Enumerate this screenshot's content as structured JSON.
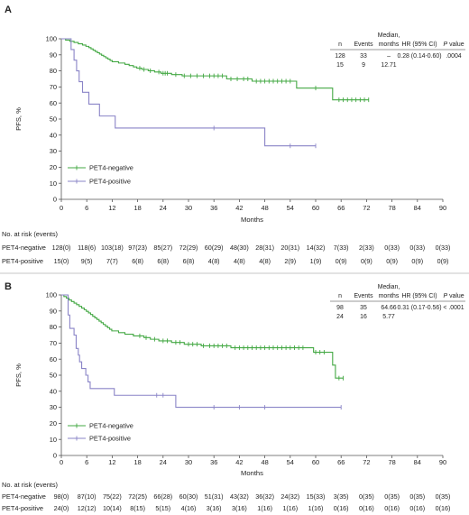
{
  "chart_data": [
    {
      "panel": "A",
      "type": "line",
      "xlabel": "Months",
      "ylabel": "PFS, %",
      "xlim": [
        0,
        90
      ],
      "ylim": [
        0,
        100
      ],
      "xticks": [
        "0",
        "6",
        "12",
        "18",
        "24",
        "30",
        "36",
        "42",
        "48",
        "54",
        "60",
        "66",
        "72",
        "78",
        "84",
        "90"
      ],
      "yticks": [
        "0",
        "10",
        "20",
        "30",
        "40",
        "50",
        "60",
        "70",
        "80",
        "90",
        "100"
      ],
      "grid": false,
      "legend_position": "lower-left",
      "series": [
        {
          "name": "PET4-negative",
          "color": "#43a843",
          "x": [
            0,
            1.0,
            2.0,
            3.0,
            4.0,
            5.0,
            5.8,
            6.5,
            7.0,
            7.5,
            8.0,
            8.5,
            9.0,
            9.5,
            10.0,
            10.5,
            11.0,
            11.5,
            12.0,
            13.5,
            15.0,
            16.0,
            17.0,
            17.8,
            19.0,
            20.5,
            22.0,
            23.5,
            26.0,
            28.5,
            39.0,
            45.0,
            55.5,
            64.0
          ],
          "y": [
            100,
            99.2,
            98.4,
            97.7,
            96.9,
            96.1,
            95.3,
            94.5,
            93.7,
            92.9,
            92.1,
            91.3,
            90.5,
            89.7,
            88.9,
            88.1,
            87.3,
            86.5,
            85.7,
            84.9,
            84.1,
            83.3,
            82.5,
            81.7,
            80.9,
            80.1,
            79.3,
            78.5,
            77.7,
            76.9,
            75.0,
            73.6,
            69.3,
            62.0
          ],
          "end": 72.5,
          "censored": [
            18.5,
            19.5,
            21,
            23,
            24,
            24.5,
            25,
            27,
            29,
            30.5,
            32,
            33.5,
            35,
            36,
            37,
            38,
            40,
            41.5,
            43,
            44,
            46,
            47,
            48,
            49,
            50,
            51,
            52,
            53,
            54,
            60,
            65.5,
            66.5,
            67.5,
            68.5,
            69.5,
            70.5,
            71.5,
            72.5
          ]
        },
        {
          "name": "PET4-positive",
          "color": "#8a84c7",
          "x": [
            0,
            2.3,
            3.0,
            3.6,
            4.2,
            5.0,
            6.5,
            9.0,
            12.71,
            48.0
          ],
          "y": [
            100,
            93.3,
            86.7,
            80.0,
            73.3,
            66.7,
            59.3,
            51.9,
            44.4,
            33.3
          ],
          "end": 60,
          "censored": [
            36,
            54,
            60
          ]
        }
      ],
      "stats_table": {
        "headers": {
          "n": "n",
          "events": "Events",
          "median_line1": "Median,",
          "median_line2": "months",
          "hr": "HR (95% CI)",
          "p_italic": "P",
          "p_rest": "value"
        },
        "rows": [
          {
            "n": "128",
            "events": "33",
            "median": "–",
            "hr": "0.28 (0.14-0.60)",
            "p": ".0004"
          },
          {
            "n": "15",
            "events": "9",
            "median": "12.71"
          }
        ]
      },
      "risk_table": {
        "title": "No. at risk (events)",
        "rows": [
          {
            "label": "PET4-negative",
            "values": [
              "128(0)",
              "118(6)",
              "103(18)",
              "97(23)",
              "85(27)",
              "72(29)",
              "60(29)",
              "48(30)",
              "28(31)",
              "20(31)",
              "14(32)",
              "7(33)",
              "2(33)",
              "0(33)",
              "0(33)",
              "0(33)"
            ]
          },
          {
            "label": "PET4-positive",
            "values": [
              "15(0)",
              "9(5)",
              "7(7)",
              "6(8)",
              "6(8)",
              "6(8)",
              "4(8)",
              "4(8)",
              "4(8)",
              "2(9)",
              "1(9)",
              "0(9)",
              "0(9)",
              "0(9)",
              "0(9)",
              "0(9)"
            ]
          }
        ]
      }
    },
    {
      "panel": "B",
      "type": "line",
      "xlabel": "Months",
      "ylabel": "PFS, %",
      "xlim": [
        0,
        90
      ],
      "ylim": [
        0,
        100
      ],
      "xticks": [
        "0",
        "6",
        "12",
        "18",
        "24",
        "30",
        "36",
        "42",
        "48",
        "54",
        "60",
        "66",
        "72",
        "78",
        "84",
        "90"
      ],
      "yticks": [
        "0",
        "10",
        "20",
        "30",
        "40",
        "50",
        "60",
        "70",
        "80",
        "90",
        "100"
      ],
      "grid": false,
      "legend_position": "lower-left",
      "series": [
        {
          "name": "PET4-negative",
          "color": "#43a843",
          "x": [
            0,
            0.6,
            1.2,
            1.8,
            2.4,
            3.0,
            3.6,
            4.2,
            4.8,
            5.4,
            5.9,
            6.4,
            6.9,
            7.4,
            7.9,
            8.4,
            8.9,
            9.4,
            9.9,
            10.4,
            10.9,
            11.4,
            11.9,
            13.5,
            15.0,
            17.0,
            19.5,
            21.0,
            23.0,
            26.0,
            29.0,
            33.0,
            40.0,
            59.5,
            64.0,
            64.66
          ],
          "y": [
            100,
            99.0,
            98.0,
            96.9,
            95.9,
            94.9,
            93.9,
            92.9,
            91.8,
            90.8,
            89.8,
            88.8,
            87.8,
            86.7,
            85.7,
            84.7,
            83.7,
            82.7,
            81.6,
            80.6,
            79.6,
            78.6,
            77.6,
            76.5,
            75.5,
            74.5,
            73.4,
            72.4,
            71.4,
            70.4,
            69.3,
            68.3,
            67.1,
            64.3,
            56.3,
            48.2
          ],
          "end": 66.5,
          "censored": [
            18.5,
            20,
            22,
            24,
            25,
            27,
            28,
            30,
            31,
            32,
            33.5,
            35,
            36,
            37,
            38,
            39,
            41,
            42,
            43,
            44,
            45,
            46,
            47,
            48,
            49,
            50,
            51,
            52,
            53,
            54,
            55,
            56,
            57,
            60,
            61,
            62,
            65.5,
            66.5
          ]
        },
        {
          "name": "PET4-positive",
          "color": "#8a84c7",
          "x": [
            0,
            1.6,
            2.0,
            3.0,
            3.5,
            4.0,
            4.3,
            4.8,
            5.77,
            6.3,
            6.8,
            12.5,
            27.0
          ],
          "y": [
            100,
            87.5,
            79.2,
            75.0,
            66.7,
            62.5,
            58.3,
            54.2,
            50.0,
            45.8,
            41.7,
            37.5,
            30.0
          ],
          "end": 66,
          "censored": [
            22.5,
            24,
            36,
            42,
            48,
            66
          ]
        }
      ],
      "stats_table": {
        "headers": {
          "n": "n",
          "events": "Events",
          "median_line1": "Median,",
          "median_line2": "months",
          "hr": "HR (95% CI)",
          "p_italic": "P",
          "p_rest": "value"
        },
        "rows": [
          {
            "n": "98",
            "events": "35",
            "median": "64.66",
            "hr": "0.31 (0.17-0.56)",
            "p": "< .0001"
          },
          {
            "n": "24",
            "events": "16",
            "median": "5.77"
          }
        ]
      },
      "risk_table": {
        "title": "No. at risk (events)",
        "rows": [
          {
            "label": "PET4-negative",
            "values": [
              "98(0)",
              "87(10)",
              "75(22)",
              "72(25)",
              "66(28)",
              "60(30)",
              "51(31)",
              "43(32)",
              "36(32)",
              "24(32)",
              "15(33)",
              "3(35)",
              "0(35)",
              "0(35)",
              "0(35)",
              "0(35)"
            ]
          },
          {
            "label": "PET4-positive",
            "values": [
              "24(0)",
              "12(12)",
              "10(14)",
              "8(15)",
              "5(15)",
              "4(16)",
              "3(16)",
              "3(16)",
              "1(16)",
              "1(16)",
              "1(16)",
              "0(16)",
              "0(16)",
              "0(16)",
              "0(16)",
              "0(16)"
            ]
          }
        ]
      }
    }
  ]
}
